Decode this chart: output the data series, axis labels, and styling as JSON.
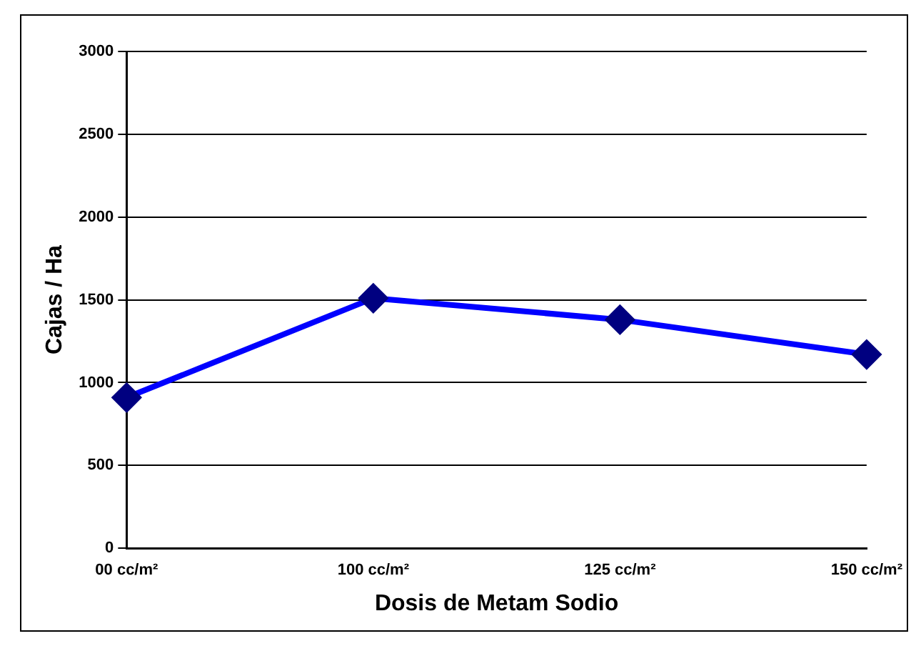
{
  "chart_data": {
    "type": "line",
    "xlabel": "Dosis de Metam Sodio",
    "ylabel": "Cajas / Ha",
    "categories": [
      "00 cc/m²",
      "100 cc/m²",
      "125 cc/m²",
      "150 cc/m²"
    ],
    "series": [
      {
        "color": "#0000ff",
        "values": [
          910,
          1510,
          1380,
          1170
        ]
      }
    ],
    "ylim": [
      0,
      3000
    ],
    "yticks": [
      0,
      500,
      1000,
      1500,
      2000,
      2500,
      3000
    ],
    "grid": "y",
    "legend": false,
    "marker": "diamond",
    "line_style": "solid"
  }
}
